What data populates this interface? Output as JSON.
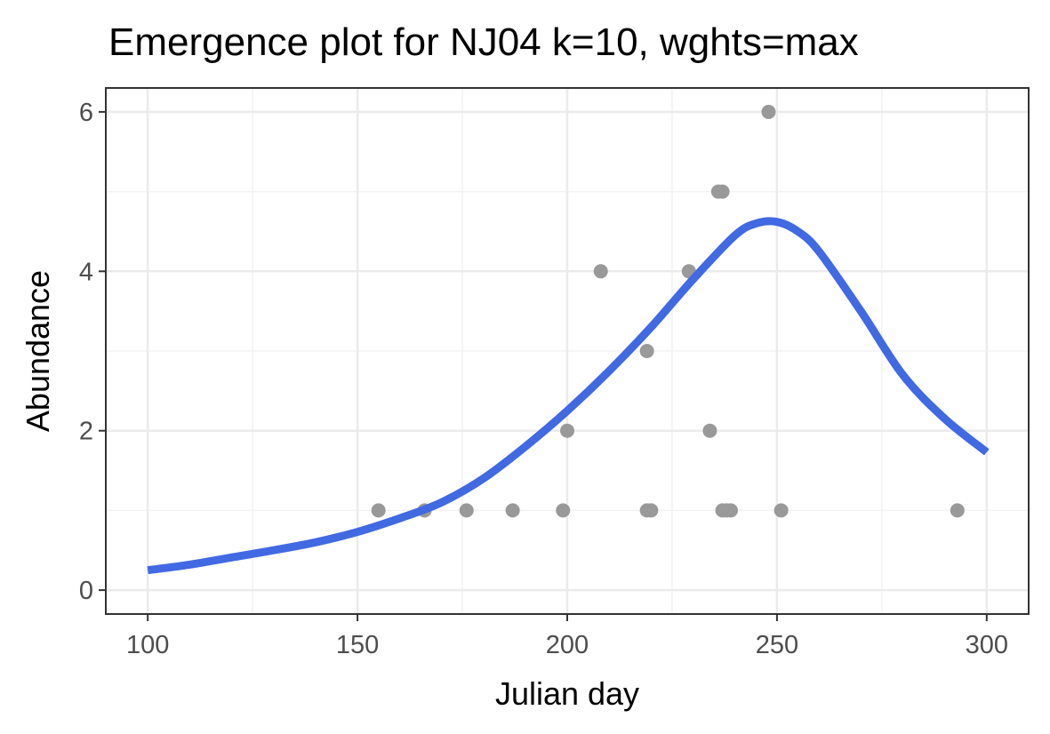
{
  "chart_data": {
    "type": "scatter",
    "title": "Emergence plot for NJ04 k=10, wghts=max",
    "xlabel": "Julian day",
    "ylabel": "Abundance",
    "xlim": [
      90,
      310
    ],
    "ylim": [
      -0.3,
      6.3
    ],
    "x_ticks": [
      100,
      150,
      200,
      250,
      300
    ],
    "x_tick_labels": [
      "100",
      "150",
      "200",
      "250",
      "300"
    ],
    "y_ticks": [
      0,
      2,
      4,
      6
    ],
    "y_tick_labels": [
      "0",
      "2",
      "4",
      "6"
    ],
    "grid": true,
    "points": {
      "name": "observations",
      "color": "#999999",
      "x": [
        155,
        166,
        176,
        187,
        199,
        200,
        208,
        219,
        219,
        220,
        229,
        234,
        236,
        237,
        237,
        238,
        239,
        248,
        251,
        293
      ],
      "y": [
        1,
        1,
        1,
        1,
        1,
        2,
        4,
        1,
        3,
        1,
        4,
        2,
        5,
        5,
        1,
        1,
        1,
        6,
        1,
        1
      ]
    },
    "fit_line": {
      "name": "fit",
      "color": "#4169e1",
      "x": [
        100,
        110,
        120,
        130,
        140,
        150,
        160,
        170,
        180,
        190,
        200,
        210,
        220,
        230,
        240,
        245,
        250,
        255,
        260,
        270,
        280,
        290,
        300
      ],
      "y": [
        0.25,
        0.32,
        0.41,
        0.5,
        0.6,
        0.73,
        0.9,
        1.1,
        1.4,
        1.8,
        2.25,
        2.75,
        3.3,
        3.9,
        4.45,
        4.6,
        4.62,
        4.5,
        4.25,
        3.5,
        2.7,
        2.15,
        1.73
      ]
    }
  }
}
